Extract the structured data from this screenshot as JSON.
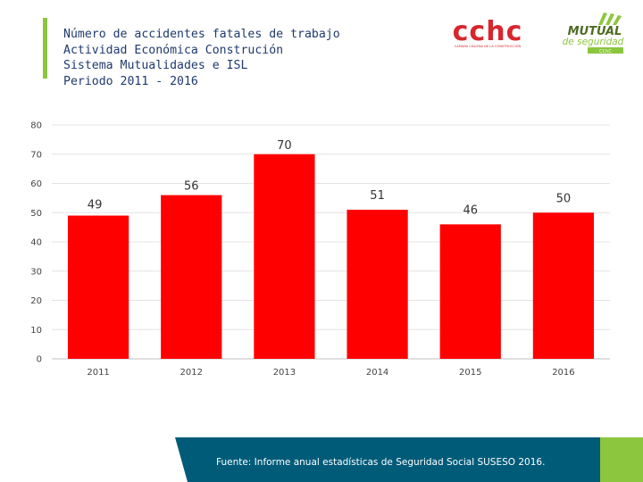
{
  "header": {
    "title_lines": [
      "Número de accidentes fatales de trabajo",
      "Actividad Económica Construción",
      "Sistema Mutualidades e ISL",
      "Periodo 2011 - 2016"
    ],
    "logo_cchc": {
      "text": "cchc",
      "subtitle": "CÁMARA CHILENA DE LA CONSTRUCCIÓN"
    },
    "logo_mutual": {
      "text": "MUTUAL",
      "subtitle": "de seguridad",
      "tag": "CChC"
    }
  },
  "chart_data": {
    "type": "bar",
    "title": "Número de accidentes fatales de trabajo",
    "categories": [
      "2011",
      "2012",
      "2013",
      "2014",
      "2015",
      "2016"
    ],
    "values": [
      49,
      56,
      70,
      51,
      46,
      50
    ],
    "y_ticks": [
      0,
      10,
      20,
      30,
      40,
      50,
      60,
      70,
      80
    ],
    "ylim": [
      0,
      80
    ],
    "xlabel": "",
    "ylabel": "",
    "grid": true,
    "bar_color": "#ff0000"
  },
  "footer": {
    "source_text": "Fuente: Informe anual estadísticas de Seguridad Social SUSESO 2016."
  },
  "colors": {
    "accent_green": "#8cc63f",
    "title_navy": "#1f3a6e",
    "footer_teal": "#005b79",
    "bar_red": "#ff0000",
    "cchc_red": "#d9262e"
  }
}
